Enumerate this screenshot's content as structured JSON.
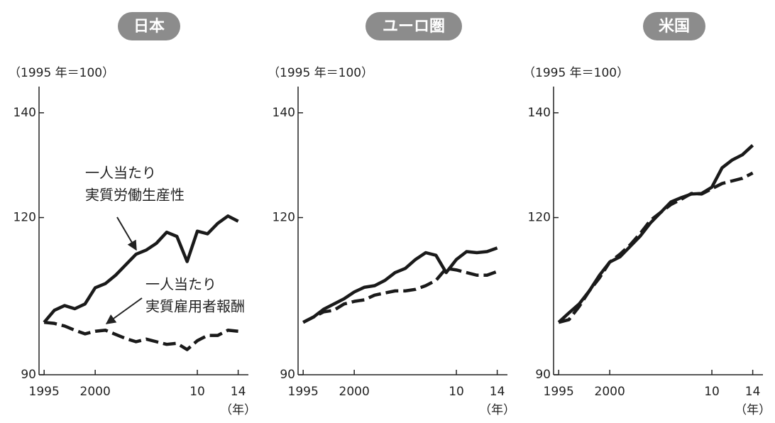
{
  "chart_data": [
    {
      "type": "line",
      "title": "日本",
      "ylabel": "（1995 年＝100）",
      "xlabel": "（年）",
      "x": [
        1995,
        1996,
        1997,
        1998,
        1999,
        2000,
        2001,
        2002,
        2003,
        2004,
        2005,
        2006,
        2007,
        2008,
        2009,
        2010,
        2011,
        2012,
        2013,
        2014
      ],
      "xlim": [
        1994.5,
        2015
      ],
      "xticks": [
        1995,
        2000,
        {
          "value": 2010,
          "label": "10"
        },
        {
          "value": 2014,
          "label": "14"
        }
      ],
      "ylim": [
        90,
        145
      ],
      "yticks": [
        90,
        120,
        140
      ],
      "annotations": [
        [
          "一人当たり",
          "実質労働生産性"
        ],
        [
          "一人当たり",
          "実質雇用者報酬"
        ]
      ],
      "series": [
        {
          "name": "一人当たり実質労働生産性",
          "color": "#1a1a1a",
          "dashed": false,
          "values": [
            100,
            102.3,
            103.2,
            102.6,
            103.5,
            106.6,
            107.4,
            109,
            111,
            113,
            113.8,
            115.1,
            117.2,
            116.4,
            111.6,
            117.4,
            116.9,
            118.9,
            120.3,
            119.3
          ]
        },
        {
          "name": "一人当たり実質雇用者報酬",
          "color": "#1a1a1a",
          "dashed": true,
          "values": [
            100,
            99.8,
            99.3,
            98.5,
            97.8,
            98.3,
            98.5,
            97.7,
            96.9,
            96.3,
            96.8,
            96.3,
            95.8,
            96,
            94.8,
            96.5,
            97.5,
            97.5,
            98.5,
            98.3
          ]
        }
      ]
    },
    {
      "type": "line",
      "title": "ユーロ圏",
      "ylabel": "（1995 年＝100）",
      "xlabel": "（年）",
      "x": [
        1995,
        1996,
        1997,
        1998,
        1999,
        2000,
        2001,
        2002,
        2003,
        2004,
        2005,
        2006,
        2007,
        2008,
        2009,
        2010,
        2011,
        2012,
        2013,
        2014
      ],
      "xlim": [
        1994.5,
        2015
      ],
      "xticks": [
        1995,
        2000,
        {
          "value": 2010,
          "label": "10"
        },
        {
          "value": 2014,
          "label": "14"
        }
      ],
      "ylim": [
        90,
        145
      ],
      "yticks": [
        90,
        120,
        140
      ],
      "series": [
        {
          "name": "一人当たり実質労働生産性",
          "color": "#1a1a1a",
          "dashed": false,
          "values": [
            100,
            101,
            102.5,
            103.5,
            104.5,
            105.8,
            106.7,
            107,
            108,
            109.5,
            110.3,
            112,
            113.3,
            112.8,
            109.5,
            112,
            113.5,
            113.3,
            113.5,
            114.2
          ]
        },
        {
          "name": "一人当たり実質雇用者報酬",
          "color": "#1a1a1a",
          "dashed": true,
          "values": [
            100,
            101,
            102,
            102.3,
            103.5,
            104,
            104.3,
            105.2,
            105.6,
            106,
            106,
            106.3,
            107,
            108,
            110.3,
            110,
            109.5,
            109,
            109,
            109.7
          ]
        }
      ]
    },
    {
      "type": "line",
      "title": "米国",
      "ylabel": "（1995 年＝100）",
      "xlabel": "（年）",
      "x": [
        1995,
        1996,
        1997,
        1998,
        1999,
        2000,
        2001,
        2002,
        2003,
        2004,
        2005,
        2006,
        2007,
        2008,
        2009,
        2010,
        2011,
        2012,
        2013,
        2014
      ],
      "xlim": [
        1994.5,
        2015
      ],
      "xticks": [
        1995,
        2000,
        {
          "value": 2010,
          "label": "10"
        },
        {
          "value": 2014,
          "label": "14"
        }
      ],
      "ylim": [
        90,
        145
      ],
      "yticks": [
        90,
        120,
        140
      ],
      "series": [
        {
          "name": "一人当たり実質労働生産性",
          "color": "#1a1a1a",
          "dashed": false,
          "values": [
            100,
            101.8,
            103.5,
            106,
            109,
            111.5,
            112.5,
            114.5,
            116.5,
            119,
            121,
            123,
            123.8,
            124.5,
            124.6,
            125.8,
            129.5,
            131,
            132,
            133.8
          ]
        },
        {
          "name": "一人当たり実質雇用者報酬",
          "color": "#1a1a1a",
          "dashed": true,
          "values": [
            100,
            100.5,
            103,
            106,
            108.5,
            111.5,
            113,
            114.8,
            117,
            119.5,
            121,
            122.5,
            123.5,
            124.6,
            124.5,
            125.5,
            126.5,
            127,
            127.5,
            128.5
          ]
        }
      ]
    }
  ]
}
